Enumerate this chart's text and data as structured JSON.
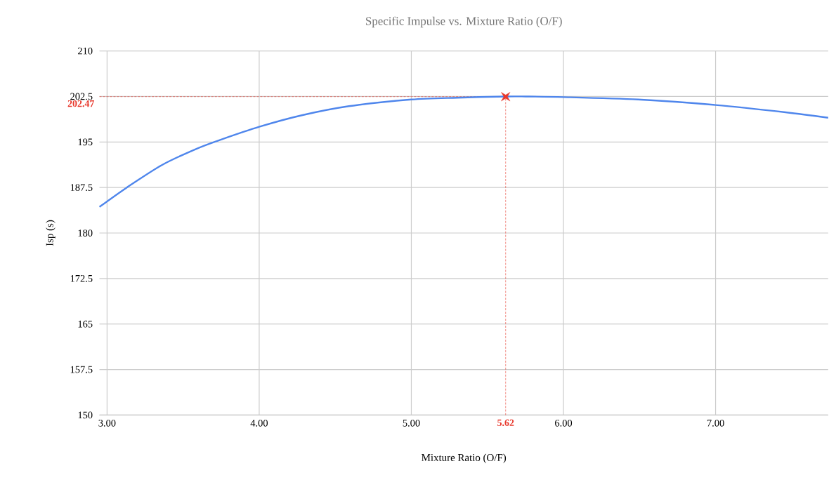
{
  "chart_data": {
    "type": "line",
    "title": "Specific Impulse vs. Mixture Ratio (O/F)",
    "xlabel": "Mixture Ratio (O/F)",
    "ylabel": "Isp (s)",
    "xlim": [
      2.95,
      7.74
    ],
    "ylim": [
      150,
      210
    ],
    "xticks": [
      {
        "value": 3,
        "label": "3.00"
      },
      {
        "value": 4,
        "label": "4.00"
      },
      {
        "value": 5,
        "label": "5.00"
      },
      {
        "value": 6,
        "label": "6.00"
      },
      {
        "value": 7,
        "label": "7.00"
      }
    ],
    "yticks": [
      150,
      157.5,
      165,
      172.5,
      180,
      187.5,
      195,
      202.5,
      210
    ],
    "grid": true,
    "series": [
      {
        "color": "#4f86ec",
        "marker": "none",
        "x": [
          2.95,
          3.13,
          3.36,
          3.59,
          3.75,
          4.0,
          4.28,
          4.59,
          5.0,
          5.3,
          5.62,
          5.75,
          6.0,
          6.49,
          7.0,
          7.46,
          7.74
        ],
        "values": [
          184.3,
          187.5,
          191.2,
          193.9,
          195.4,
          197.5,
          199.4,
          200.9,
          202.0,
          202.3,
          202.5,
          202.5,
          202.4,
          202.0,
          201.1,
          199.9,
          199.0
        ]
      },
      {
        "type": "scatter",
        "color": "#e8382c",
        "marker": "star",
        "x": [
          5.62
        ],
        "values": [
          202.47
        ]
      }
    ],
    "ref_lines": [
      {
        "axis": "x",
        "value": 5.62,
        "label": "5.62",
        "color": "#e8382c",
        "line_style": "dashed"
      },
      {
        "axis": "y",
        "value": 202.47,
        "label": "202.47",
        "color": "#e8382c",
        "line_style": "dashed"
      }
    ]
  }
}
